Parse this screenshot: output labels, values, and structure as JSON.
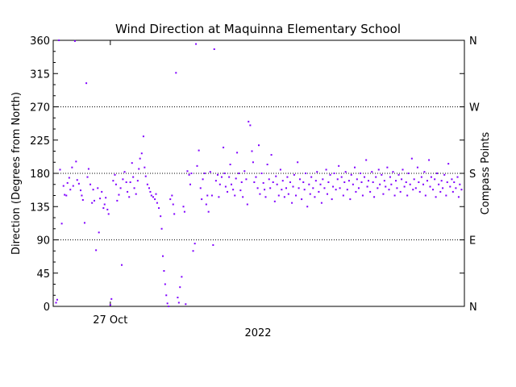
{
  "chart_data": {
    "type": "scatter",
    "title": "Wind Direction at Maquinna Elementary School",
    "ylabel": "Direction (Degrees from North)",
    "y2label": "Compass Points",
    "xlabel": "2022",
    "ylim": [
      0,
      360
    ],
    "yticks": [
      "0",
      "45",
      "90",
      "135",
      "180",
      "225",
      "270",
      "315",
      "360"
    ],
    "y2ticks": [
      {
        "value": 0,
        "label": "N"
      },
      {
        "value": 90,
        "label": "E"
      },
      {
        "value": 180,
        "label": "S"
      },
      {
        "value": 270,
        "label": "W"
      },
      {
        "value": 360,
        "label": "N"
      }
    ],
    "xticks": [
      {
        "value": 1.0,
        "label": "27 Oct"
      }
    ],
    "xlim": [
      0,
      7.2
    ],
    "x_units": "days from start of plot",
    "grid_y": [
      90,
      180,
      270
    ],
    "marker_color": "#8000ff",
    "series": [
      {
        "values": [
          [
            0.05,
            5
          ],
          [
            0.07,
            9
          ],
          [
            0.1,
            362
          ],
          [
            0.12,
            185
          ],
          [
            0.15,
            112
          ],
          [
            0.18,
            163
          ],
          [
            0.2,
            151
          ],
          [
            0.23,
            150
          ],
          [
            0.25,
            167
          ],
          [
            0.28,
            174
          ],
          [
            0.3,
            158
          ],
          [
            0.33,
            188
          ],
          [
            0.35,
            163
          ],
          [
            0.38,
            359
          ],
          [
            0.4,
            196
          ],
          [
            0.42,
            171
          ],
          [
            0.45,
            166
          ],
          [
            0.48,
            157
          ],
          [
            0.5,
            150
          ],
          [
            0.52,
            144
          ],
          [
            0.55,
            113
          ],
          [
            0.58,
            302
          ],
          [
            0.6,
            175
          ],
          [
            0.62,
            186
          ],
          [
            0.65,
            165
          ],
          [
            0.68,
            140
          ],
          [
            0.7,
            158
          ],
          [
            0.72,
            143
          ],
          [
            0.75,
            76
          ],
          [
            0.78,
            160
          ],
          [
            0.8,
            100
          ],
          [
            0.82,
            146
          ],
          [
            0.85,
            155
          ],
          [
            0.88,
            133
          ],
          [
            0.9,
            138
          ],
          [
            0.92,
            147
          ],
          [
            0.95,
            131
          ],
          [
            0.97,
            125
          ],
          [
            1.0,
            2
          ],
          [
            1.02,
            10
          ],
          [
            1.05,
            170
          ],
          [
            1.08,
            178
          ],
          [
            1.1,
            165
          ],
          [
            1.12,
            143
          ],
          [
            1.15,
            151
          ],
          [
            1.18,
            160
          ],
          [
            1.2,
            56
          ],
          [
            1.22,
            172
          ],
          [
            1.25,
            182
          ],
          [
            1.28,
            168
          ],
          [
            1.3,
            155
          ],
          [
            1.33,
            148
          ],
          [
            1.35,
            168
          ],
          [
            1.38,
            194
          ],
          [
            1.4,
            175
          ],
          [
            1.42,
            160
          ],
          [
            1.45,
            152
          ],
          [
            1.48,
            170
          ],
          [
            1.5,
            186
          ],
          [
            1.52,
            200
          ],
          [
            1.55,
            207
          ],
          [
            1.58,
            230
          ],
          [
            1.6,
            188
          ],
          [
            1.62,
            176
          ],
          [
            1.65,
            165
          ],
          [
            1.68,
            160
          ],
          [
            1.7,
            155
          ],
          [
            1.72,
            150
          ],
          [
            1.75,
            148
          ],
          [
            1.78,
            145
          ],
          [
            1.8,
            152
          ],
          [
            1.82,
            140
          ],
          [
            1.85,
            133
          ],
          [
            1.88,
            122
          ],
          [
            1.9,
            105
          ],
          [
            1.92,
            68
          ],
          [
            1.94,
            48
          ],
          [
            1.96,
            30
          ],
          [
            1.98,
            15
          ],
          [
            2.0,
            4
          ],
          [
            2.02,
            0
          ],
          [
            2.05,
            145
          ],
          [
            2.08,
            150
          ],
          [
            2.1,
            138
          ],
          [
            2.12,
            125
          ],
          [
            2.15,
            316
          ],
          [
            2.18,
            12
          ],
          [
            2.2,
            5
          ],
          [
            2.22,
            26
          ],
          [
            2.25,
            40
          ],
          [
            2.28,
            135
          ],
          [
            2.3,
            128
          ],
          [
            2.32,
            3
          ],
          [
            2.35,
            183
          ],
          [
            2.38,
            178
          ],
          [
            2.4,
            165
          ],
          [
            2.42,
            180
          ],
          [
            2.45,
            75
          ],
          [
            2.48,
            85
          ],
          [
            2.5,
            355
          ],
          [
            2.52,
            190
          ],
          [
            2.55,
            211
          ],
          [
            2.58,
            160
          ],
          [
            2.6,
            145
          ],
          [
            2.62,
            172
          ],
          [
            2.65,
            180
          ],
          [
            2.68,
            138
          ],
          [
            2.7,
            150
          ],
          [
            2.72,
            128
          ],
          [
            2.75,
            182
          ],
          [
            2.78,
            150
          ],
          [
            2.8,
            83
          ],
          [
            2.82,
            348
          ],
          [
            2.85,
            170
          ],
          [
            2.88,
            178
          ],
          [
            2.9,
            148
          ],
          [
            2.92,
            165
          ],
          [
            2.95,
            175
          ],
          [
            2.98,
            215
          ],
          [
            3.0,
            180
          ],
          [
            3.02,
            162
          ],
          [
            3.05,
            155
          ],
          [
            3.08,
            175
          ],
          [
            3.1,
            192
          ],
          [
            3.12,
            165
          ],
          [
            3.15,
            158
          ],
          [
            3.18,
            150
          ],
          [
            3.2,
            173
          ],
          [
            3.22,
            208
          ],
          [
            3.25,
            180
          ],
          [
            3.28,
            157
          ],
          [
            3.3,
            168
          ],
          [
            3.32,
            148
          ],
          [
            3.35,
            183
          ],
          [
            3.38,
            172
          ],
          [
            3.4,
            138
          ],
          [
            3.42,
            250
          ],
          [
            3.45,
            245
          ],
          [
            3.48,
            210
          ],
          [
            3.5,
            195
          ],
          [
            3.52,
            168
          ],
          [
            3.55,
            175
          ],
          [
            3.58,
            160
          ],
          [
            3.6,
            218
          ],
          [
            3.62,
            152
          ],
          [
            3.65,
            180
          ],
          [
            3.68,
            167
          ],
          [
            3.7,
            158
          ],
          [
            3.72,
            148
          ],
          [
            3.75,
            192
          ],
          [
            3.78,
            172
          ],
          [
            3.8,
            160
          ],
          [
            3.82,
            205
          ],
          [
            3.85,
            168
          ],
          [
            3.88,
            142
          ],
          [
            3.9,
            176
          ],
          [
            3.92,
            165
          ],
          [
            3.95,
            150
          ],
          [
            3.98,
            185
          ],
          [
            4.0,
            158
          ],
          [
            4.02,
            170
          ],
          [
            4.05,
            148
          ],
          [
            4.08,
            160
          ],
          [
            4.1,
            175
          ],
          [
            4.12,
            152
          ],
          [
            4.15,
            168
          ],
          [
            4.18,
            140
          ],
          [
            4.2,
            162
          ],
          [
            4.22,
            178
          ],
          [
            4.25,
            150
          ],
          [
            4.28,
            195
          ],
          [
            4.3,
            160
          ],
          [
            4.32,
            172
          ],
          [
            4.35,
            145
          ],
          [
            4.38,
            168
          ],
          [
            4.4,
            158
          ],
          [
            4.42,
            180
          ],
          [
            4.45,
            135
          ],
          [
            4.48,
            165
          ],
          [
            4.5,
            152
          ],
          [
            4.52,
            175
          ],
          [
            4.55,
            160
          ],
          [
            4.58,
            148
          ],
          [
            4.6,
            170
          ],
          [
            4.62,
            182
          ],
          [
            4.65,
            155
          ],
          [
            4.68,
            165
          ],
          [
            4.7,
            140
          ],
          [
            4.72,
            172
          ],
          [
            4.75,
            160
          ],
          [
            4.78,
            185
          ],
          [
            4.8,
            152
          ],
          [
            4.82,
            168
          ],
          [
            4.85,
            178
          ],
          [
            4.88,
            145
          ],
          [
            4.9,
            162
          ],
          [
            4.92,
            180
          ],
          [
            4.95,
            158
          ],
          [
            4.98,
            172
          ],
          [
            5.0,
            190
          ],
          [
            5.02,
            160
          ],
          [
            5.05,
            175
          ],
          [
            5.08,
            150
          ],
          [
            5.1,
            168
          ],
          [
            5.12,
            182
          ],
          [
            5.15,
            158
          ],
          [
            5.18,
            170
          ],
          [
            5.2,
            145
          ],
          [
            5.22,
            178
          ],
          [
            5.25,
            165
          ],
          [
            5.28,
            188
          ],
          [
            5.3,
            155
          ],
          [
            5.32,
            172
          ],
          [
            5.35,
            160
          ],
          [
            5.38,
            180
          ],
          [
            5.4,
            168
          ],
          [
            5.42,
            150
          ],
          [
            5.45,
            175
          ],
          [
            5.48,
            198
          ],
          [
            5.5,
            162
          ],
          [
            5.52,
            170
          ],
          [
            5.55,
            155
          ],
          [
            5.58,
            182
          ],
          [
            5.6,
            168
          ],
          [
            5.62,
            148
          ],
          [
            5.65,
            175
          ],
          [
            5.68,
            160
          ],
          [
            5.7,
            185
          ],
          [
            5.72,
            165
          ],
          [
            5.75,
            178
          ],
          [
            5.78,
            152
          ],
          [
            5.8,
            170
          ],
          [
            5.82,
            162
          ],
          [
            5.85,
            188
          ],
          [
            5.88,
            158
          ],
          [
            5.9,
            175
          ],
          [
            5.92,
            165
          ],
          [
            5.95,
            182
          ],
          [
            5.98,
            150
          ],
          [
            6.0,
            170
          ],
          [
            6.02,
            160
          ],
          [
            6.05,
            178
          ],
          [
            6.08,
            155
          ],
          [
            6.1,
            172
          ],
          [
            6.12,
            185
          ],
          [
            6.15,
            162
          ],
          [
            6.18,
            168
          ],
          [
            6.2,
            150
          ],
          [
            6.22,
            180
          ],
          [
            6.25,
            165
          ],
          [
            6.28,
            200
          ],
          [
            6.3,
            158
          ],
          [
            6.32,
            172
          ],
          [
            6.35,
            160
          ],
          [
            6.38,
            188
          ],
          [
            6.4,
            168
          ],
          [
            6.42,
            155
          ],
          [
            6.45,
            175
          ],
          [
            6.48,
            165
          ],
          [
            6.5,
            182
          ],
          [
            6.52,
            150
          ],
          [
            6.55,
            170
          ],
          [
            6.58,
            198
          ],
          [
            6.6,
            162
          ],
          [
            6.62,
            175
          ],
          [
            6.65,
            158
          ],
          [
            6.68,
            172
          ],
          [
            6.7,
            148
          ],
          [
            6.72,
            180
          ],
          [
            6.75,
            165
          ],
          [
            6.78,
            155
          ],
          [
            6.8,
            170
          ],
          [
            6.82,
            160
          ],
          [
            6.85,
            178
          ],
          [
            6.88,
            150
          ],
          [
            6.9,
            168
          ],
          [
            6.92,
            193
          ],
          [
            6.95,
            162
          ],
          [
            6.98,
            172
          ],
          [
            7.0,
            155
          ],
          [
            7.02,
            168
          ],
          [
            7.05,
            160
          ],
          [
            7.08,
            175
          ],
          [
            7.1,
            148
          ],
          [
            7.12,
            165
          ],
          [
            7.15,
            158
          ]
        ]
      }
    ]
  }
}
